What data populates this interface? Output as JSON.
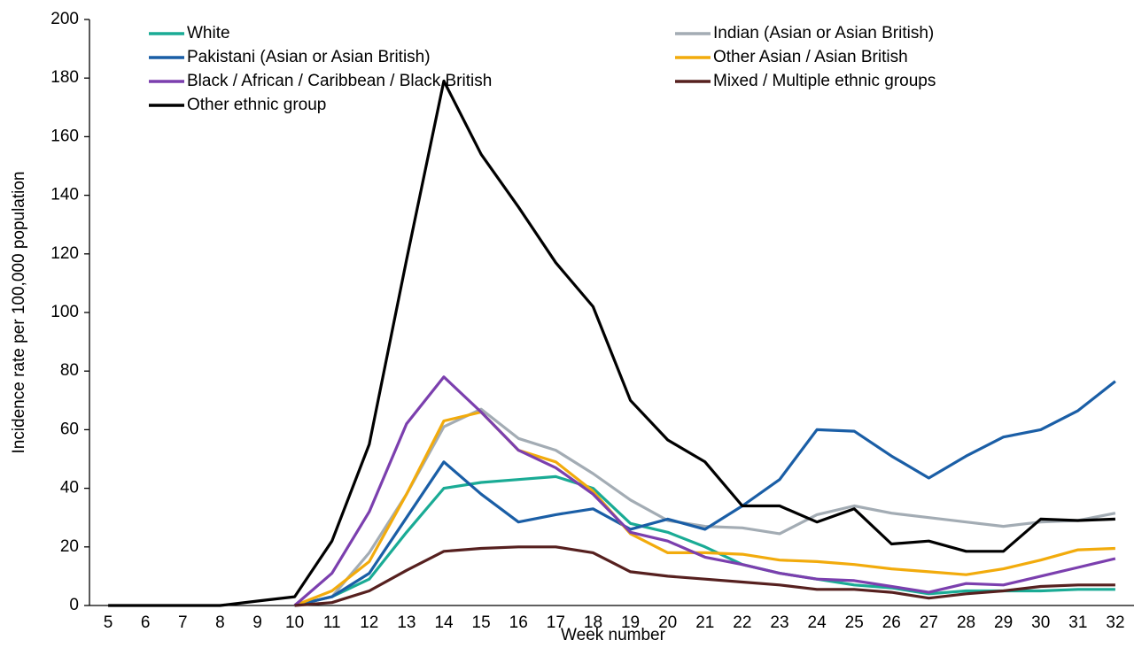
{
  "chart_data": {
    "type": "line",
    "x_label": "Week number",
    "y_label": "Incidence rate per 100,000 population",
    "categories": [
      "5",
      "6",
      "7",
      "8",
      "9",
      "10",
      "11",
      "12",
      "13",
      "14",
      "15",
      "16",
      "17",
      "18",
      "19",
      "20",
      "21",
      "22",
      "23",
      "24",
      "25",
      "26",
      "27",
      "28",
      "29",
      "30",
      "31",
      "32"
    ],
    "ylim": [
      0,
      200
    ],
    "yticks": [
      0,
      20,
      40,
      60,
      80,
      100,
      120,
      140,
      160,
      180,
      200
    ],
    "series": [
      {
        "name": "White",
        "color": "#1aab95",
        "values": [
          null,
          null,
          null,
          null,
          null,
          0,
          3,
          9,
          25,
          40,
          42,
          43,
          44,
          40,
          28,
          25,
          20,
          14,
          11,
          9,
          7,
          6,
          4,
          5,
          5,
          5,
          5.5,
          5.5
        ]
      },
      {
        "name": "Indian (Asian or Asian British)",
        "color": "#a3acb4",
        "values": [
          null,
          null,
          null,
          null,
          null,
          0,
          3,
          18,
          38,
          61,
          67,
          57,
          53,
          45,
          36,
          29,
          27,
          26.5,
          24.5,
          31,
          34,
          31.5,
          30,
          28.5,
          27,
          28.5,
          29,
          31.5
        ]
      },
      {
        "name": "Pakistani (Asian or Asian British)",
        "color": "#1a5ea6",
        "values": [
          null,
          null,
          null,
          null,
          null,
          0,
          3,
          11,
          30,
          49,
          38,
          28.5,
          31,
          33,
          26,
          29.5,
          26,
          34,
          43,
          60,
          59.5,
          51,
          43.5,
          51,
          57.5,
          60,
          66.5,
          76.5
        ]
      },
      {
        "name": "Other Asian / Asian British",
        "color": "#f2ab0c",
        "values": [
          null,
          null,
          null,
          null,
          null,
          0,
          5,
          15,
          38,
          63,
          66,
          53,
          49,
          39,
          24.5,
          18,
          18,
          17.5,
          15.5,
          15,
          14,
          12.5,
          11.5,
          10.5,
          12.5,
          15.5,
          19,
          19.5
        ]
      },
      {
        "name": "Black / African / Caribbean / Black British",
        "color": "#7b3fae",
        "values": [
          null,
          null,
          null,
          null,
          null,
          0,
          11,
          32,
          62,
          78,
          66,
          53,
          47,
          38,
          25,
          22,
          16.5,
          14,
          11,
          9,
          8.5,
          6.5,
          4.5,
          7.5,
          7,
          10,
          13,
          16
        ]
      },
      {
        "name": "Mixed / Multiple ethnic groups",
        "color": "#56201f",
        "values": [
          null,
          null,
          null,
          null,
          null,
          0,
          1,
          5,
          12,
          18.5,
          19.5,
          20,
          20,
          18,
          11.5,
          10,
          9,
          8,
          7,
          5.5,
          5.5,
          4.5,
          2.5,
          4,
          5,
          6.5,
          7,
          7
        ]
      },
      {
        "name": "Other ethnic group",
        "color": "#000000",
        "values": [
          0,
          0,
          0,
          0,
          1.5,
          3,
          22,
          55,
          118,
          179,
          154,
          136,
          117,
          102,
          70,
          56.5,
          49,
          34,
          34,
          28.5,
          33,
          21,
          22,
          18.5,
          18.5,
          29.5,
          29,
          29.5
        ]
      }
    ]
  }
}
